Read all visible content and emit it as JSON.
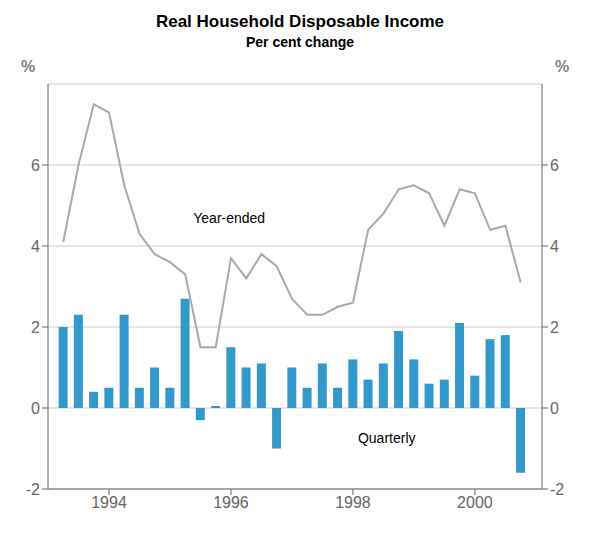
{
  "chart_data": {
    "type": "bar",
    "title": "Real Household Disposable Income",
    "subtitle": "Per cent change",
    "ylabel": "%",
    "y2label": "%",
    "x": [
      1993.25,
      1993.5,
      1993.75,
      1994.0,
      1994.25,
      1994.5,
      1994.75,
      1995.0,
      1995.25,
      1995.5,
      1995.75,
      1996.0,
      1996.25,
      1996.5,
      1996.75,
      1997.0,
      1997.25,
      1997.5,
      1997.75,
      1998.0,
      1998.25,
      1998.5,
      1998.75,
      1999.0,
      1999.25,
      1999.5,
      1999.75,
      2000.0,
      2000.25,
      2000.5,
      2000.75
    ],
    "series": [
      {
        "name": "Quarterly",
        "type": "bar",
        "color": "#3399cc",
        "values": [
          2.0,
          2.3,
          0.4,
          0.5,
          2.3,
          0.5,
          1.0,
          0.5,
          2.7,
          -0.3,
          0.05,
          1.5,
          1.0,
          1.1,
          -1.0,
          1.0,
          0.5,
          1.1,
          0.5,
          1.2,
          0.7,
          1.1,
          1.9,
          1.2,
          0.6,
          0.7,
          2.1,
          0.8,
          1.7,
          1.8,
          -1.6
        ]
      },
      {
        "name": "Year-ended",
        "type": "line",
        "color": "#aaaaaa",
        "values": [
          4.1,
          6.0,
          7.5,
          7.3,
          5.5,
          4.3,
          3.8,
          3.6,
          3.3,
          1.5,
          1.5,
          3.7,
          3.2,
          3.8,
          3.5,
          2.7,
          2.3,
          2.3,
          2.5,
          2.6,
          4.4,
          4.8,
          5.4,
          5.5,
          5.3,
          4.5,
          5.4,
          5.3,
          4.4,
          4.5,
          3.1
        ]
      }
    ],
    "annotations": [
      {
        "text": "Year-ended",
        "x": 1995.3,
        "y": 4.7
      },
      {
        "text": "Quarterly",
        "x": 1998.0,
        "y": -0.75
      }
    ],
    "xlim": [
      1993.0,
      2001.1
    ],
    "xticks": [
      1994,
      1996,
      1998,
      2000
    ],
    "ylim": [
      -2,
      8
    ],
    "yticks": [
      -2,
      0,
      2,
      4,
      6
    ],
    "y2lim": [
      -2,
      8
    ],
    "y2ticks": [
      -2,
      0,
      2,
      4,
      6
    ],
    "grid": true
  }
}
